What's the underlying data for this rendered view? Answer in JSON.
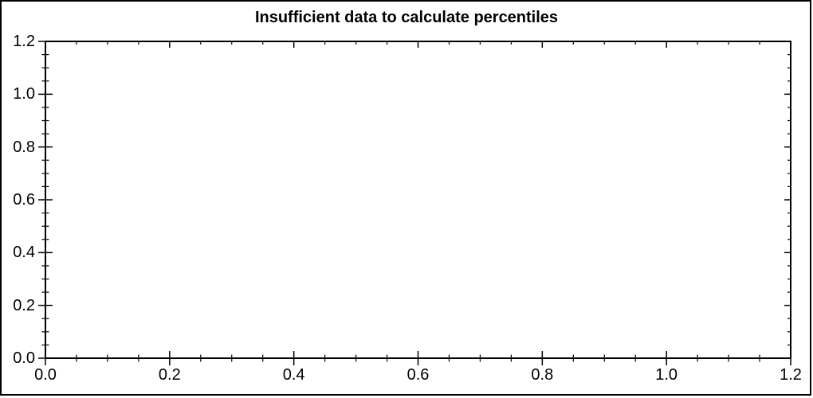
{
  "chart_data": {
    "type": "scatter",
    "title": "Insufficient data to calculate percentiles",
    "series": [],
    "xlabel": "",
    "ylabel": "",
    "xlim": [
      0,
      1.2
    ],
    "ylim": [
      0,
      1.2
    ],
    "x_tick_values": [
      0,
      0.2,
      0.4,
      0.6,
      0.8,
      1.0,
      1.2
    ],
    "x_tick_labels": [
      "0.0",
      "0.2",
      "0.4",
      "0.6",
      "0.8",
      "1.0",
      "1.2"
    ],
    "y_tick_values": [
      0,
      0.2,
      0.4,
      0.6,
      0.8,
      1.0,
      1.2
    ],
    "y_tick_labels": [
      "0.0",
      "0.2",
      "0.4",
      "0.6",
      "0.8",
      "1.0",
      "1.2"
    ],
    "minor_tick_step": 0.05,
    "grid": false,
    "legend": false,
    "frame_box": true,
    "axis_color": "#000000",
    "background_color": "#ffffff"
  }
}
